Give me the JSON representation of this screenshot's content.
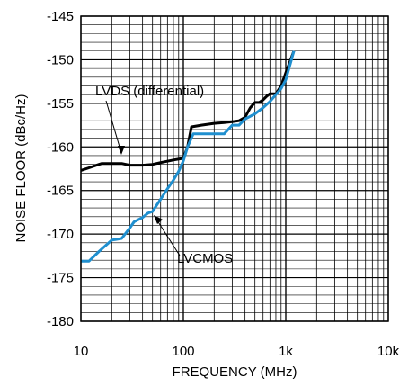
{
  "chart_data": {
    "type": "line",
    "xlabel": "FREQUENCY (MHz)",
    "ylabel": "NOISE FLOOR (dBc/Hz)",
    "x_scale": "log",
    "xlim": [
      10,
      10000
    ],
    "ylim": [
      -180,
      -145
    ],
    "x_ticks": [
      10,
      100,
      1000,
      10000
    ],
    "x_tick_labels": [
      "10",
      "100",
      "1k",
      "10k"
    ],
    "y_ticks": [
      -145,
      -150,
      -155,
      -160,
      -165,
      -170,
      -175,
      -180
    ],
    "y_tick_labels": [
      "-145",
      "-150",
      "-155",
      "-160",
      "-165",
      "-170",
      "-175",
      "-180"
    ],
    "grid": true,
    "annotations": [
      {
        "text": "LVDS (differential)",
        "series": "LVDS (differential)"
      },
      {
        "text": "LVCMOS",
        "series": "LVCMOS"
      }
    ],
    "series": [
      {
        "name": "LVDS (differential)",
        "color": "#000000",
        "points": [
          [
            10,
            -162.7
          ],
          [
            12,
            -162.4
          ],
          [
            15,
            -162.0
          ],
          [
            16,
            -161.9
          ],
          [
            20,
            -161.9
          ],
          [
            25,
            -161.9
          ],
          [
            30,
            -162.1
          ],
          [
            40,
            -162.1
          ],
          [
            50,
            -162.0
          ],
          [
            60,
            -161.8
          ],
          [
            80,
            -161.5
          ],
          [
            100,
            -161.3
          ],
          [
            110,
            -160.0
          ],
          [
            120,
            -157.7
          ],
          [
            150,
            -157.5
          ],
          [
            200,
            -157.3
          ],
          [
            250,
            -157.2
          ],
          [
            300,
            -157.1
          ],
          [
            350,
            -157.0
          ],
          [
            400,
            -156.6
          ],
          [
            450,
            -155.5
          ],
          [
            500,
            -154.9
          ],
          [
            550,
            -154.9
          ],
          [
            600,
            -154.6
          ],
          [
            650,
            -154.2
          ],
          [
            700,
            -153.9
          ],
          [
            800,
            -153.9
          ],
          [
            900,
            -153.0
          ],
          [
            1000,
            -151.5
          ],
          [
            1200,
            -149.0
          ]
        ]
      },
      {
        "name": "LVCMOS",
        "color": "#1f8fcf",
        "points": [
          [
            10,
            -173.1
          ],
          [
            12,
            -173.1
          ],
          [
            15,
            -172.0
          ],
          [
            20,
            -170.7
          ],
          [
            25,
            -170.5
          ],
          [
            30,
            -169.3
          ],
          [
            33,
            -168.6
          ],
          [
            40,
            -168.1
          ],
          [
            45,
            -167.6
          ],
          [
            50,
            -167.4
          ],
          [
            60,
            -166.0
          ],
          [
            70,
            -164.8
          ],
          [
            80,
            -163.8
          ],
          [
            90,
            -162.8
          ],
          [
            100,
            -161.6
          ],
          [
            110,
            -160.0
          ],
          [
            125,
            -158.5
          ],
          [
            150,
            -158.5
          ],
          [
            200,
            -158.5
          ],
          [
            250,
            -158.5
          ],
          [
            300,
            -157.5
          ],
          [
            350,
            -157.5
          ],
          [
            400,
            -156.8
          ],
          [
            500,
            -156.2
          ],
          [
            600,
            -155.5
          ],
          [
            700,
            -154.8
          ],
          [
            800,
            -154.0
          ],
          [
            900,
            -153.3
          ],
          [
            1000,
            -152.3
          ],
          [
            1200,
            -149.0
          ]
        ]
      }
    ]
  }
}
